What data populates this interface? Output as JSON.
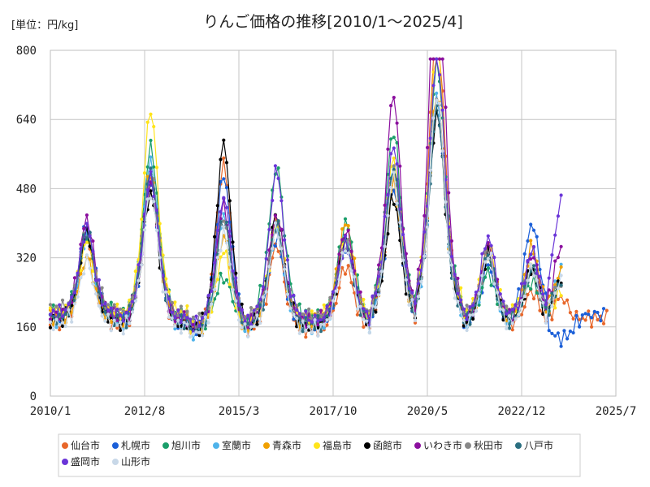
{
  "chart_data": {
    "type": "line",
    "title": "りんご価格の推移[2010/1～2025/4]",
    "unit_label": "[単位：円/kg]",
    "xlabel": "",
    "ylabel": "",
    "x_ticks": [
      "2010/1",
      "2012/8",
      "2015/3",
      "2017/10",
      "2020/5",
      "2022/12",
      "2025/7"
    ],
    "y_ticks": [
      0,
      160,
      320,
      480,
      640,
      800
    ],
    "ylim": [
      0,
      800
    ],
    "grid": true,
    "legend_position": "bottom",
    "series": [
      {
        "name": "仙台市",
        "color": "#e8672a",
        "shape": [
          0.93,
          1.08,
          1.27,
          0.8,
          0.75,
          1.05,
          1.55,
          0.85,
          0.63,
          0.48
        ],
        "hi": [
          1.02,
          1.0,
          1.0,
          1.0,
          1.0,
          1.0,
          1.04,
          1.0,
          0.92,
          1.0
        ],
        "end": 2025.25
      },
      {
        "name": "札幌市",
        "color": "#1b5fd8",
        "shape": [
          1.04,
          1.05,
          1.24,
          0.84,
          0.87,
          1.0,
          1.4,
          0.74,
          0.95,
          0.28
        ],
        "hi": [
          0.96,
          1.0,
          0.98,
          1.0,
          1.0,
          1.0,
          0.88,
          1.0,
          1.0,
          1.0
        ],
        "end": 2025.2
      },
      {
        "name": "旭川市",
        "color": "#1a9e6a",
        "shape": [
          0.95,
          1.22,
          0.82,
          1.2,
          1.0,
          1.28,
          1.5,
          0.7,
          0.7,
          0.55
        ],
        "hi": [
          1.0,
          1.0,
          0.8,
          1.0,
          1.0,
          1.0,
          0.92,
          1.0,
          0.9,
          1.0
        ],
        "end": 2024.0
      },
      {
        "name": "室蘭市",
        "color": "#4fb3ea",
        "shape": [
          0.96,
          1.15,
          1.0,
          0.9,
          0.9,
          1.1,
          1.3,
          0.8,
          0.8,
          0.6
        ],
        "hi": [
          1.0,
          1.0,
          1.0,
          1.0,
          1.0,
          1.0,
          0.95,
          1.0,
          1.0,
          1.0
        ],
        "end": 2024.0
      },
      {
        "name": "青森市",
        "color": "#f0a000",
        "shape": [
          0.82,
          1.1,
          0.88,
          0.92,
          1.0,
          1.02,
          1.28,
          0.82,
          0.82,
          0.6
        ],
        "hi": [
          1.0,
          1.0,
          1.0,
          1.0,
          1.0,
          1.0,
          0.98,
          1.0,
          1.0,
          1.0
        ],
        "end": 2024.0
      },
      {
        "name": "福島市",
        "color": "#ffe41a",
        "shape": [
          0.92,
          1.24,
          0.8,
          0.9,
          0.9,
          1.14,
          1.38,
          0.86,
          0.7,
          0.5
        ],
        "hi": [
          1.0,
          1.14,
          1.0,
          1.0,
          1.0,
          1.0,
          1.06,
          1.0,
          1.0,
          1.0
        ],
        "end": 2024.0
      },
      {
        "name": "函館市",
        "color": "#000000",
        "shape": [
          0.97,
          1.0,
          1.3,
          0.96,
          0.9,
          0.96,
          1.3,
          0.8,
          0.7,
          0.55
        ],
        "hi": [
          1.0,
          1.0,
          1.07,
          1.0,
          1.0,
          1.0,
          0.9,
          1.0,
          1.0,
          1.0
        ],
        "end": 2024.0
      },
      {
        "name": "いわき市",
        "color": "#8b0f9e",
        "shape": [
          1.05,
          1.05,
          1.05,
          0.95,
          0.96,
          1.3,
          1.6,
          0.85,
          0.7,
          0.65
        ],
        "hi": [
          1.0,
          1.0,
          1.0,
          1.0,
          1.0,
          1.12,
          1.35,
          1.0,
          1.12,
          1.1
        ],
        "end": 2024.0
      },
      {
        "name": "秋田市",
        "color": "#888888",
        "shape": [
          0.98,
          1.1,
          0.98,
          0.9,
          0.88,
          1.1,
          1.3,
          0.8,
          0.7,
          0.55
        ],
        "hi": [
          1.0,
          1.0,
          1.0,
          1.0,
          1.0,
          1.0,
          0.95,
          1.0,
          1.0,
          1.0
        ],
        "end": 2024.0
      },
      {
        "name": "八戸市",
        "color": "#2b6f80",
        "shape": [
          0.98,
          1.1,
          0.98,
          0.9,
          0.88,
          1.1,
          1.25,
          0.8,
          0.7,
          0.55
        ],
        "hi": [
          1.0,
          1.0,
          1.0,
          1.0,
          1.0,
          1.0,
          0.95,
          1.0,
          1.0,
          1.0
        ],
        "end": 2024.0
      },
      {
        "name": "盛岡市",
        "color": "#6a35d8",
        "shape": [
          1.0,
          1.08,
          1.15,
          1.1,
          0.88,
          1.2,
          1.42,
          0.9,
          0.8,
          0.85
        ],
        "hi": [
          1.0,
          1.0,
          0.95,
          1.08,
          1.0,
          1.0,
          1.0,
          1.0,
          1.0,
          1.1
        ],
        "end": 2024.0
      },
      {
        "name": "山形市",
        "color": "#c8d8e8",
        "shape": [
          0.8,
          1.0,
          0.9,
          0.88,
          0.85,
          1.05,
          1.25,
          0.8,
          0.7,
          0.55
        ],
        "hi": [
          1.0,
          1.0,
          1.0,
          1.0,
          1.0,
          1.0,
          1.0,
          1.0,
          1.0,
          1.0
        ],
        "end": 2024.0
      }
    ]
  }
}
